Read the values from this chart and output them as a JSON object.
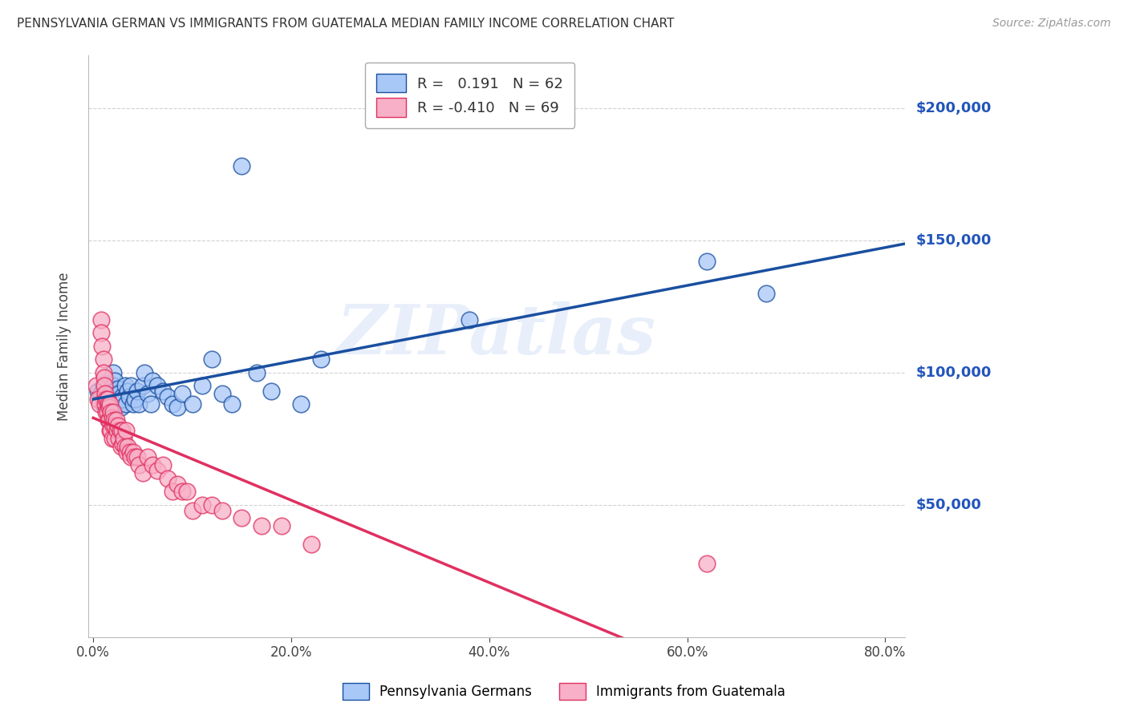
{
  "title": "PENNSYLVANIA GERMAN VS IMMIGRANTS FROM GUATEMALA MEDIAN FAMILY INCOME CORRELATION CHART",
  "source": "Source: ZipAtlas.com",
  "ylabel": "Median Family Income",
  "xlabel_ticks": [
    "0.0%",
    "20.0%",
    "40.0%",
    "60.0%",
    "80.0%"
  ],
  "xlabel_vals": [
    0.0,
    0.2,
    0.4,
    0.6,
    0.8
  ],
  "ylim": [
    0,
    220000
  ],
  "xlim": [
    -0.005,
    0.82
  ],
  "yticks": [
    0,
    50000,
    100000,
    150000,
    200000
  ],
  "ytick_labels": [
    "",
    "$50,000",
    "$100,000",
    "$150,000",
    "$200,000"
  ],
  "blue_R": 0.191,
  "blue_N": 62,
  "pink_R": -0.41,
  "pink_N": 69,
  "blue_color": "#a8c8f8",
  "pink_color": "#f8b0c8",
  "blue_line_color": "#1a4fa0",
  "pink_line_color": "#e03060",
  "legend_label_blue": "Pennsylvania Germans",
  "legend_label_pink": "Immigrants from Guatemala",
  "watermark": "ZIPatlas",
  "background_color": "#ffffff",
  "blue_scatter_x": [
    0.005,
    0.008,
    0.01,
    0.01,
    0.012,
    0.012,
    0.013,
    0.014,
    0.015,
    0.015,
    0.016,
    0.016,
    0.017,
    0.018,
    0.018,
    0.019,
    0.02,
    0.02,
    0.021,
    0.022,
    0.022,
    0.023,
    0.024,
    0.025,
    0.026,
    0.027,
    0.028,
    0.029,
    0.03,
    0.032,
    0.033,
    0.035,
    0.036,
    0.038,
    0.04,
    0.042,
    0.044,
    0.046,
    0.05,
    0.052,
    0.055,
    0.058,
    0.06,
    0.065,
    0.07,
    0.075,
    0.08,
    0.085,
    0.09,
    0.1,
    0.11,
    0.12,
    0.13,
    0.14,
    0.15,
    0.165,
    0.18,
    0.21,
    0.23,
    0.38,
    0.62,
    0.68
  ],
  "blue_scatter_y": [
    93000,
    92000,
    95000,
    88000,
    96000,
    90000,
    93000,
    88000,
    91000,
    87000,
    95000,
    89000,
    93000,
    90000,
    88000,
    94000,
    100000,
    95000,
    93000,
    88000,
    97000,
    92000,
    89000,
    94000,
    92000,
    88000,
    87000,
    91000,
    90000,
    95000,
    88000,
    93000,
    91000,
    95000,
    88000,
    90000,
    93000,
    88000,
    95000,
    100000,
    92000,
    88000,
    97000,
    95000,
    93000,
    91000,
    88000,
    87000,
    92000,
    88000,
    95000,
    105000,
    92000,
    88000,
    178000,
    100000,
    93000,
    88000,
    105000,
    120000,
    142000,
    130000
  ],
  "pink_scatter_x": [
    0.003,
    0.005,
    0.006,
    0.008,
    0.008,
    0.009,
    0.01,
    0.01,
    0.011,
    0.011,
    0.012,
    0.012,
    0.013,
    0.013,
    0.014,
    0.014,
    0.015,
    0.015,
    0.016,
    0.016,
    0.017,
    0.017,
    0.018,
    0.018,
    0.019,
    0.019,
    0.02,
    0.02,
    0.021,
    0.022,
    0.022,
    0.023,
    0.024,
    0.025,
    0.026,
    0.027,
    0.028,
    0.029,
    0.03,
    0.031,
    0.032,
    0.033,
    0.034,
    0.035,
    0.037,
    0.038,
    0.04,
    0.042,
    0.044,
    0.046,
    0.05,
    0.055,
    0.06,
    0.065,
    0.07,
    0.075,
    0.08,
    0.085,
    0.09,
    0.095,
    0.1,
    0.11,
    0.12,
    0.13,
    0.15,
    0.17,
    0.19,
    0.22,
    0.62
  ],
  "pink_scatter_y": [
    95000,
    90000,
    88000,
    120000,
    115000,
    110000,
    105000,
    100000,
    98000,
    95000,
    92000,
    88000,
    90000,
    85000,
    90000,
    85000,
    88000,
    82000,
    87000,
    82000,
    88000,
    78000,
    85000,
    78000,
    83000,
    75000,
    85000,
    80000,
    82000,
    80000,
    75000,
    82000,
    78000,
    80000,
    75000,
    78000,
    72000,
    78000,
    73000,
    75000,
    72000,
    78000,
    70000,
    72000,
    70000,
    68000,
    70000,
    68000,
    68000,
    65000,
    62000,
    68000,
    65000,
    63000,
    65000,
    60000,
    55000,
    58000,
    55000,
    55000,
    48000,
    50000,
    50000,
    48000,
    45000,
    42000,
    42000,
    35000,
    28000
  ]
}
